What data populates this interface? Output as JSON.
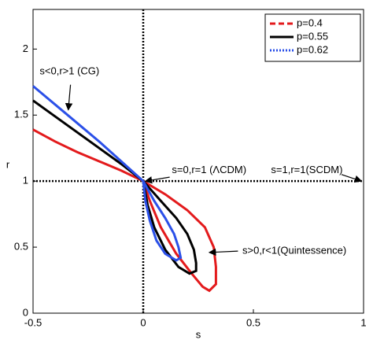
{
  "chart_data": {
    "type": "line",
    "xlabel": "s",
    "ylabel": "r",
    "xlim": [
      -0.5,
      1
    ],
    "ylim": [
      0,
      2.3
    ],
    "xticks": [
      -0.5,
      0,
      0.5,
      1
    ],
    "yticks": [
      0,
      0.5,
      1,
      1.5,
      2
    ],
    "vline": 0,
    "hline": 1,
    "legend": "upper right",
    "series": [
      {
        "name": "p=0.4",
        "color": "#e31a1c",
        "legend_style": "dashed",
        "x": [
          -0.5,
          -0.4,
          -0.3,
          -0.2,
          -0.1,
          0,
          0.1,
          0.2,
          0.28,
          0.32,
          0.33,
          0.33,
          0.3,
          0.27,
          0.22,
          0.15,
          0.08,
          0.03,
          0
        ],
        "values": [
          1.39,
          1.3,
          1.22,
          1.15,
          1.08,
          1,
          0.9,
          0.78,
          0.65,
          0.5,
          0.35,
          0.22,
          0.17,
          0.2,
          0.3,
          0.45,
          0.65,
          0.85,
          1
        ]
      },
      {
        "name": "p=0.55",
        "color": "#000000",
        "legend_style": "solid",
        "x": [
          -0.5,
          -0.4,
          -0.3,
          -0.2,
          -0.1,
          0,
          0.08,
          0.15,
          0.2,
          0.23,
          0.24,
          0.24,
          0.21,
          0.16,
          0.1,
          0.05,
          0.02,
          0
        ],
        "values": [
          1.61,
          1.49,
          1.37,
          1.25,
          1.13,
          1,
          0.85,
          0.72,
          0.6,
          0.48,
          0.38,
          0.32,
          0.3,
          0.35,
          0.48,
          0.65,
          0.82,
          1
        ]
      },
      {
        "name": "p=0.62",
        "color": "#2b50e8",
        "legend_style": "dotted",
        "x": [
          -0.5,
          -0.4,
          -0.3,
          -0.2,
          -0.1,
          0,
          0.05,
          0.1,
          0.14,
          0.16,
          0.17,
          0.15,
          0.1,
          0.06,
          0.03,
          0.01,
          0
        ],
        "values": [
          1.72,
          1.58,
          1.44,
          1.3,
          1.15,
          1,
          0.85,
          0.72,
          0.6,
          0.5,
          0.42,
          0.4,
          0.45,
          0.55,
          0.7,
          0.85,
          1
        ]
      }
    ],
    "annotations": [
      "s<0,r>1 (CG)",
      "s=0,r=1 (ΛCDM)",
      "s=1,r=1(SCDM)",
      "s>0,r<1(Quintessence)"
    ]
  }
}
